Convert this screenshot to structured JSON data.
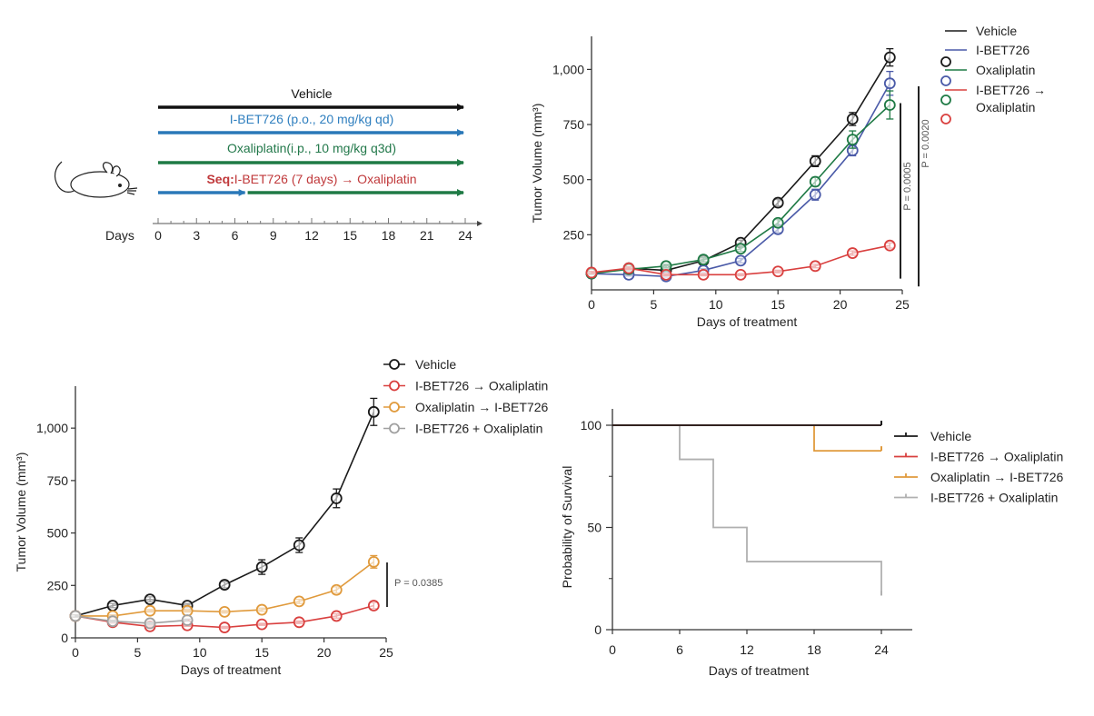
{
  "schematic": {
    "rows": [
      {
        "label": "Vehicle",
        "color": "#111111",
        "segments": [
          {
            "from": 0,
            "to": 24,
            "color": "#111111"
          }
        ]
      },
      {
        "label": "I-BET726 (p.o., 20 mg/kg qd)",
        "color": "#2f7fbf",
        "segments": [
          {
            "from": 0,
            "to": 24,
            "color": "#2a78b8"
          }
        ]
      },
      {
        "label": "Oxaliplatin(i.p., 10 mg/kg q3d)",
        "color": "#22784a",
        "segments": [
          {
            "from": 0,
            "to": 24,
            "color": "#1f7a45"
          }
        ]
      },
      {
        "label_bold": "Seq:",
        "label": "I-BET726 (7 days) → Oxaliplatin",
        "color": "#c0393b",
        "segments": [
          {
            "from": 0,
            "to": 7,
            "color": "#2a78b8"
          },
          {
            "from": 7,
            "to": 24,
            "color": "#1f7a45"
          }
        ]
      }
    ],
    "axis_label": "Days",
    "ticks": [
      "0",
      "3",
      "6",
      "9",
      "12",
      "15",
      "18",
      "21",
      "24"
    ],
    "icon": "mouse-icon"
  },
  "chart_data": [
    {
      "id": "tumor-volume-a",
      "type": "line",
      "title": "",
      "xlabel": "Days of treatment",
      "ylabel": "Tumor Volume (mm³)",
      "xlim": [
        0,
        25
      ],
      "ylim": [
        0,
        1150
      ],
      "xticks": [
        0,
        5,
        10,
        15,
        20,
        25
      ],
      "yticks": [
        250,
        500,
        750,
        1000
      ],
      "ytick_labels": [
        "250",
        "500",
        "750",
        "1,000"
      ],
      "x": [
        0,
        3,
        6,
        9,
        12,
        15,
        18,
        21,
        24
      ],
      "legend_position": "right",
      "series": [
        {
          "name": "Vehicle",
          "color": "#1a1a1a",
          "values": [
            75,
            100,
            90,
            135,
            218,
            403,
            595,
            790,
            1075
          ],
          "errors": [
            5,
            8,
            6,
            10,
            12,
            15,
            25,
            30,
            40
          ]
        },
        {
          "name": "I-BET726",
          "color": "#4a5aa8",
          "values": [
            75,
            70,
            62,
            90,
            135,
            280,
            440,
            645,
            955
          ],
          "errors": [
            5,
            6,
            5,
            8,
            10,
            15,
            25,
            25,
            55
          ]
        },
        {
          "name": "Oxaliplatin",
          "color": "#1f7a45",
          "values": [
            75,
            95,
            110,
            140,
            190,
            310,
            500,
            695,
            855
          ],
          "errors": [
            5,
            8,
            8,
            10,
            12,
            15,
            20,
            40,
            65
          ]
        },
        {
          "name": "I-BET726 → Oxaliplatin",
          "color": "#d9403f",
          "values": [
            80,
            100,
            70,
            70,
            70,
            85,
            110,
            170,
            205
          ],
          "errors": [
            5,
            6,
            5,
            5,
            5,
            6,
            8,
            10,
            12
          ]
        }
      ],
      "annotations": [
        {
          "text": "P = 0.0005",
          "from": 220,
          "to": 855
        },
        {
          "text": "P = 0.0020",
          "from": 205,
          "to": 955
        }
      ]
    },
    {
      "id": "tumor-volume-b",
      "type": "line",
      "title": "",
      "xlabel": "Days of treatment",
      "ylabel": "Tumor Volume (mm³)",
      "xlim": [
        0,
        25
      ],
      "ylim": [
        0,
        1200
      ],
      "xticks": [
        0,
        5,
        10,
        15,
        20,
        25
      ],
      "yticks": [
        0,
        250,
        500,
        750,
        1000
      ],
      "ytick_labels": [
        "0",
        "250",
        "500",
        "750",
        "1,000"
      ],
      "legend_position": "top-right",
      "series": [
        {
          "name": "Vehicle",
          "color": "#1a1a1a",
          "x": [
            0,
            3,
            6,
            9,
            12,
            15,
            18,
            21,
            24
          ],
          "values": [
            105,
            155,
            185,
            155,
            255,
            340,
            445,
            670,
            1085
          ],
          "errors": [
            8,
            10,
            12,
            10,
            15,
            35,
            35,
            45,
            65
          ]
        },
        {
          "name": "I-BET726 → Oxaliplatin",
          "color": "#d9403f",
          "x": [
            0,
            3,
            6,
            9,
            12,
            15,
            18,
            21,
            24
          ],
          "values": [
            105,
            75,
            55,
            60,
            50,
            65,
            75,
            105,
            155
          ],
          "errors": [
            5,
            5,
            5,
            5,
            5,
            5,
            6,
            10,
            15
          ]
        },
        {
          "name": "Oxaliplatin → I-BET726",
          "color": "#e09a3c",
          "x": [
            0,
            3,
            6,
            9,
            12,
            15,
            18,
            21,
            24
          ],
          "values": [
            105,
            105,
            130,
            130,
            125,
            135,
            175,
            230,
            365
          ],
          "errors": [
            5,
            6,
            6,
            6,
            6,
            8,
            10,
            15,
            30
          ]
        },
        {
          "name": "I-BET726 + Oxaliplatin",
          "color": "#a0a0a0",
          "x": [
            0,
            3,
            6,
            9
          ],
          "values": [
            105,
            80,
            70,
            85
          ],
          "errors": [
            5,
            5,
            5,
            5
          ]
        }
      ],
      "annotations": [
        {
          "text": "P = 0.0385",
          "from": 150,
          "to": 360
        }
      ]
    },
    {
      "id": "survival",
      "type": "line",
      "subtype": "step",
      "title": "",
      "xlabel": "Days of treatment",
      "ylabel": "Probability of Survival",
      "xlim": [
        0,
        27
      ],
      "ylim": [
        0,
        110
      ],
      "xticks": [
        0,
        6,
        12,
        18,
        24
      ],
      "yticks": [
        0,
        50,
        100
      ],
      "yminor": [
        25,
        75
      ],
      "legend_position": "right",
      "series": [
        {
          "name": "Vehicle",
          "color": "#1a1a1a",
          "steps": [
            [
              0,
              100
            ],
            [
              24,
              100
            ]
          ]
        },
        {
          "name": "I-BET726 → Oxaliplatin",
          "color": "#d9403f",
          "steps": [
            [
              0,
              100
            ],
            [
              24,
              100
            ]
          ]
        },
        {
          "name": "Oxaliplatin → I-BET726",
          "color": "#e09a3c",
          "steps": [
            [
              0,
              100
            ],
            [
              18,
              87.5
            ],
            [
              24,
              87.5
            ]
          ]
        },
        {
          "name": "I-BET726 + Oxaliplatin",
          "color": "#b0b0b0",
          "steps": [
            [
              0,
              100
            ],
            [
              6,
              83.3
            ],
            [
              9,
              50
            ],
            [
              12,
              33.3
            ],
            [
              24,
              16.7
            ]
          ]
        }
      ]
    }
  ]
}
